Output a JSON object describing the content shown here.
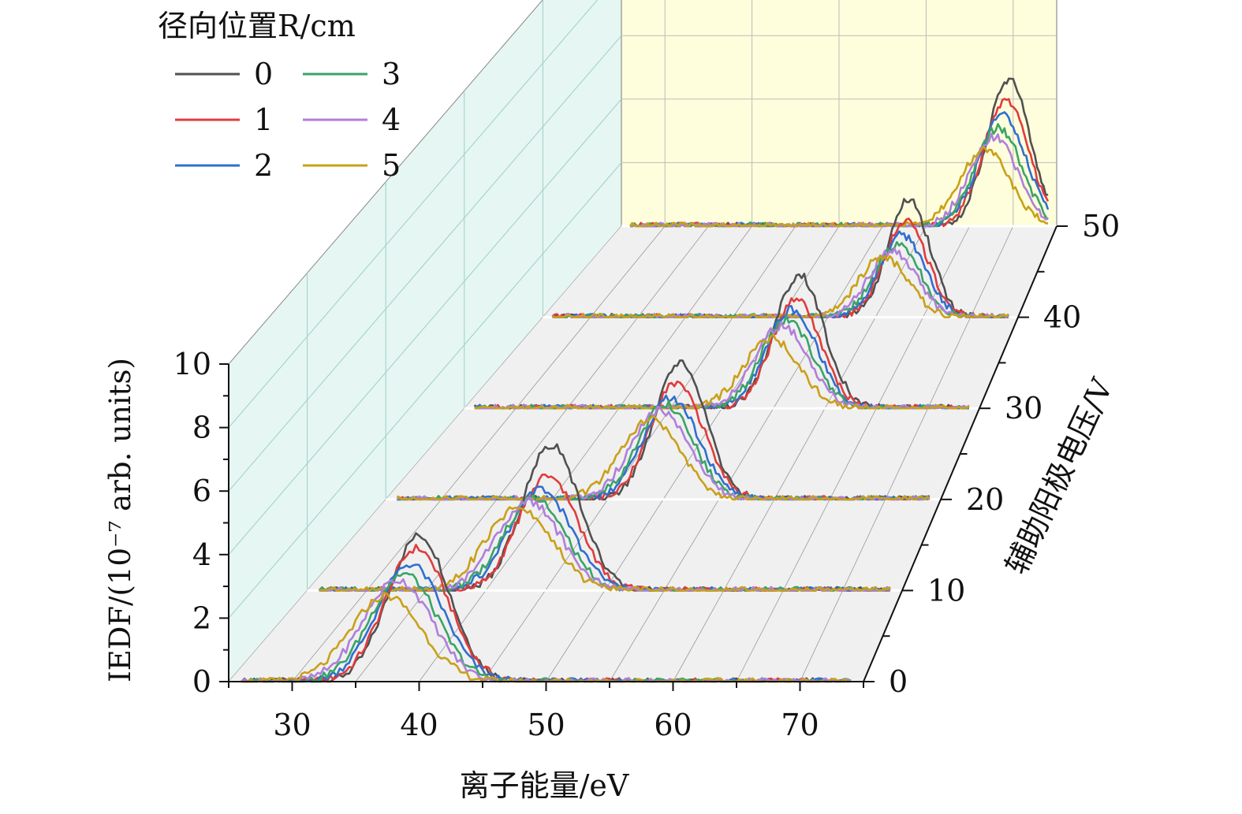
{
  "chart_data": {
    "type": "line",
    "subtype": "3d-waterfall",
    "title": "",
    "xlabel": "离子能量/eV",
    "ylabel": "IEDF/(10⁻⁷ arb. units)",
    "zlabel": "辅助阳极电压/V",
    "xlim": [
      25,
      75
    ],
    "ylim": [
      0,
      10
    ],
    "x_ticks": [
      "30",
      "40",
      "50",
      "60",
      "70"
    ],
    "y_ticks": [
      "0",
      "2",
      "4",
      "6",
      "8",
      "10"
    ],
    "z_ticks": [
      "0",
      "10",
      "20",
      "30",
      "40",
      "50"
    ],
    "legend_title": "径向位置R/cm",
    "legend_placement": "top-left",
    "colors": {
      "series": [
        "#505050",
        "#e03c3c",
        "#2f6fce",
        "#3aa466",
        "#b07fd9",
        "#c9a019"
      ],
      "floor": "#f0f0f0",
      "back_wall": "#fefedc",
      "side_wall": "#e5f6f3",
      "grid": "#bbbbbb"
    },
    "voltage_slices": [
      0,
      10,
      20,
      30,
      40,
      50
    ],
    "series": [
      {
        "name": "0",
        "peaks": [
          {
            "v": 0,
            "center": 40,
            "height": 4.6,
            "width": 2.4
          },
          {
            "v": 10,
            "center": 45.5,
            "height": 4.6,
            "width": 2.4
          },
          {
            "v": 20,
            "center": 51.5,
            "height": 4.3,
            "width": 2.3
          },
          {
            "v": 30,
            "center": 57.5,
            "height": 4.2,
            "width": 2.4
          },
          {
            "v": 40,
            "center": 63.5,
            "height": 3.7,
            "width": 2.2
          },
          {
            "v": 50,
            "center": 69.5,
            "height": 4.6,
            "width": 2.5
          }
        ]
      },
      {
        "name": "1",
        "peaks": [
          {
            "v": 0,
            "center": 39.8,
            "height": 4.2,
            "width": 2.5
          },
          {
            "v": 10,
            "center": 45.2,
            "height": 3.6,
            "width": 2.5
          },
          {
            "v": 20,
            "center": 51.2,
            "height": 3.7,
            "width": 2.4
          },
          {
            "v": 30,
            "center": 57.2,
            "height": 3.4,
            "width": 2.4
          },
          {
            "v": 40,
            "center": 63.2,
            "height": 3.0,
            "width": 2.3
          },
          {
            "v": 50,
            "center": 69.2,
            "height": 4.0,
            "width": 2.6
          }
        ]
      },
      {
        "name": "2",
        "peaks": [
          {
            "v": 0,
            "center": 39.3,
            "height": 3.7,
            "width": 2.6
          },
          {
            "v": 10,
            "center": 44.6,
            "height": 3.2,
            "width": 2.6
          },
          {
            "v": 20,
            "center": 50.7,
            "height": 3.2,
            "width": 2.5
          },
          {
            "v": 30,
            "center": 56.8,
            "height": 3.1,
            "width": 2.5
          },
          {
            "v": 40,
            "center": 62.8,
            "height": 2.6,
            "width": 2.4
          },
          {
            "v": 50,
            "center": 68.8,
            "height": 3.5,
            "width": 2.7
          }
        ]
      },
      {
        "name": "3",
        "peaks": [
          {
            "v": 0,
            "center": 38.8,
            "height": 3.4,
            "width": 2.6
          },
          {
            "v": 10,
            "center": 44.1,
            "height": 2.9,
            "width": 2.6
          },
          {
            "v": 20,
            "center": 50.2,
            "height": 3.0,
            "width": 2.5
          },
          {
            "v": 30,
            "center": 56.3,
            "height": 2.8,
            "width": 2.5
          },
          {
            "v": 40,
            "center": 62.3,
            "height": 2.3,
            "width": 2.4
          },
          {
            "v": 50,
            "center": 68.3,
            "height": 3.1,
            "width": 2.7
          }
        ]
      },
      {
        "name": "4",
        "peaks": [
          {
            "v": 0,
            "center": 38.3,
            "height": 3.2,
            "width": 2.7
          },
          {
            "v": 10,
            "center": 43.6,
            "height": 2.8,
            "width": 2.7
          },
          {
            "v": 20,
            "center": 49.7,
            "height": 2.8,
            "width": 2.6
          },
          {
            "v": 30,
            "center": 55.8,
            "height": 2.6,
            "width": 2.6
          },
          {
            "v": 40,
            "center": 61.8,
            "height": 2.1,
            "width": 2.5
          },
          {
            "v": 50,
            "center": 67.8,
            "height": 2.8,
            "width": 2.8
          }
        ]
      },
      {
        "name": "5",
        "peaks": [
          {
            "v": 0,
            "center": 37.4,
            "height": 2.7,
            "width": 2.8
          },
          {
            "v": 10,
            "center": 42.8,
            "height": 2.6,
            "width": 2.8
          },
          {
            "v": 20,
            "center": 48.8,
            "height": 2.5,
            "width": 2.7
          },
          {
            "v": 30,
            "center": 54.8,
            "height": 2.2,
            "width": 2.7
          },
          {
            "v": 40,
            "center": 60.8,
            "height": 1.9,
            "width": 2.6
          },
          {
            "v": 50,
            "center": 66.8,
            "height": 2.4,
            "width": 2.9
          }
        ]
      }
    ]
  }
}
